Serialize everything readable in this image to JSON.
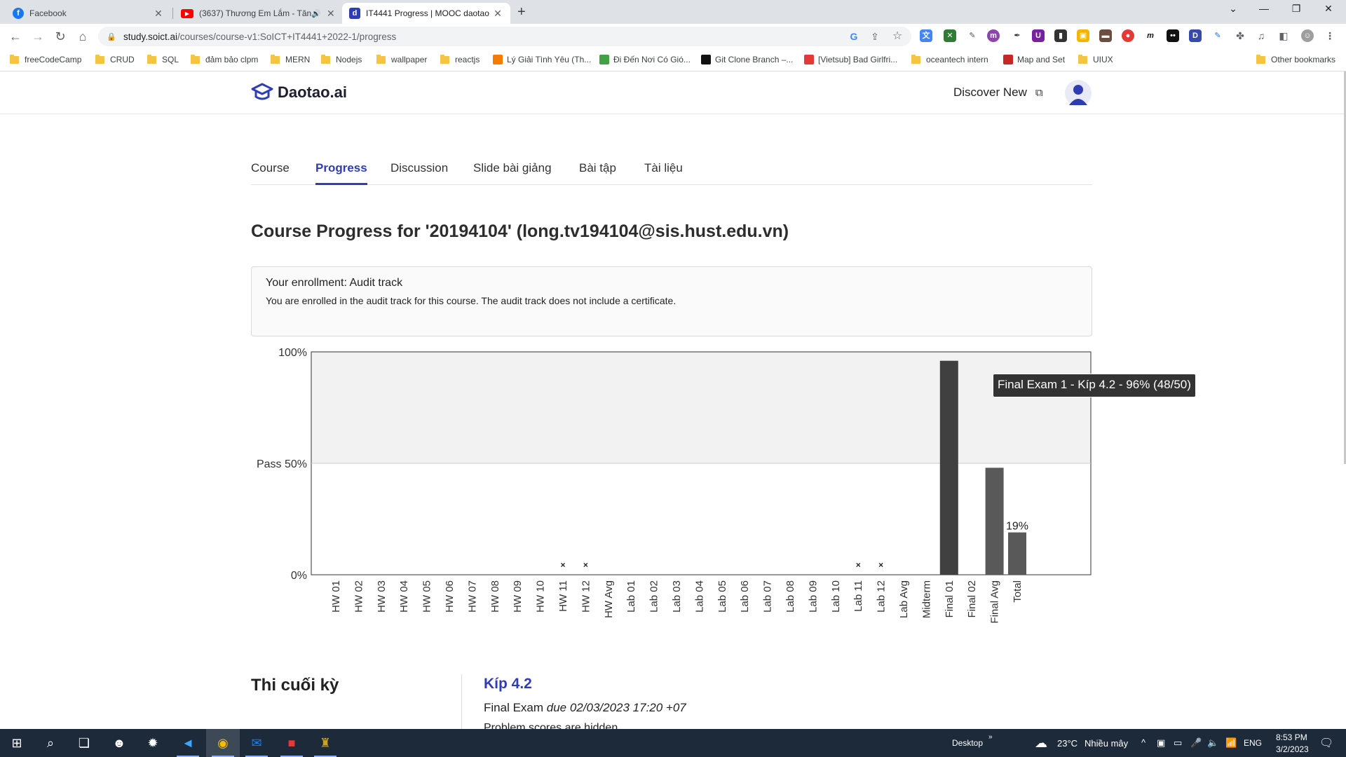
{
  "browser": {
    "tabs": [
      {
        "title": "Facebook",
        "icon": "facebook-icon",
        "color": "#1877f2"
      },
      {
        "title": "(3637) Thương Em Lắm - Tăn",
        "icon": "youtube-icon",
        "color": "#ff0000"
      },
      {
        "title": "IT4441 Progress | MOOC daotao",
        "icon": "daotao-icon",
        "color": "#2f3db5",
        "active": true
      }
    ],
    "url_host": "study.soict.ai",
    "url_path": "/courses/course-v1:SoICT+IT4441+2022-1/progress",
    "bookmarks": [
      {
        "label": "freeCodeCamp",
        "type": "folder"
      },
      {
        "label": "CRUD",
        "type": "folder"
      },
      {
        "label": "SQL",
        "type": "folder"
      },
      {
        "label": "đảm bảo clpm",
        "type": "folder"
      },
      {
        "label": "MERN",
        "type": "folder"
      },
      {
        "label": "Nodejs",
        "type": "folder"
      },
      {
        "label": "wallpaper",
        "type": "folder"
      },
      {
        "label": "reactjs",
        "type": "folder"
      },
      {
        "label": "Lý Giải Tình Yêu (Th...",
        "type": "site"
      },
      {
        "label": "Đi Đến Nơi Có Gió...",
        "type": "site"
      },
      {
        "label": "Git Clone Branch –...",
        "type": "site"
      },
      {
        "label": "[Vietsub] Bad Girlfri...",
        "type": "site"
      },
      {
        "label": "oceantech intern",
        "type": "folder"
      },
      {
        "label": "Map and Set",
        "type": "site"
      },
      {
        "label": "UIUX",
        "type": "folder"
      }
    ],
    "other_bookmarks": "Other bookmarks"
  },
  "site": {
    "logo_text": "Daotao.ai",
    "discover_label": "Discover New"
  },
  "nav_tabs": [
    {
      "label": "Course"
    },
    {
      "label": "Progress",
      "active": true
    },
    {
      "label": "Discussion"
    },
    {
      "label": "Slide bài giảng"
    },
    {
      "label": "Bài tập"
    },
    {
      "label": "Tài liệu"
    }
  ],
  "progress_title": "Course Progress for '20194104' (long.tv194104@sis.hust.edu.vn)",
  "enrollment": {
    "heading": "Your enrollment: Audit track",
    "body": "You are enrolled in the audit track for this course. The audit track does not include a certificate."
  },
  "chart_data": {
    "type": "bar",
    "categories": [
      "HW 01",
      "HW 02",
      "HW 03",
      "HW 04",
      "HW 05",
      "HW 06",
      "HW 07",
      "HW 08",
      "HW 09",
      "HW 10",
      "HW 11",
      "HW 12",
      "HW Avg",
      "Lab 01",
      "Lab 02",
      "Lab 03",
      "Lab 04",
      "Lab 05",
      "Lab 06",
      "Lab 07",
      "Lab 08",
      "Lab 09",
      "Lab 10",
      "Lab 11",
      "Lab 12",
      "Lab Avg",
      "Midterm",
      "Final 01",
      "Final 02",
      "Final Avg",
      "Total"
    ],
    "values": [
      0,
      0,
      0,
      0,
      0,
      0,
      0,
      0,
      0,
      0,
      0,
      0,
      0,
      0,
      0,
      0,
      0,
      0,
      0,
      0,
      0,
      0,
      0,
      0,
      0,
      0,
      0,
      96,
      0,
      48,
      19
    ],
    "dropped": [
      "HW 11",
      "HW 12",
      "Lab 11",
      "Lab 12"
    ],
    "dropped_marker": "×",
    "highlight": "Final 01",
    "y_ticks": [
      {
        "value": 0,
        "label": "0%"
      },
      {
        "value": 50,
        "label": "Pass 50%"
      },
      {
        "value": 100,
        "label": "100%"
      }
    ],
    "ylim": [
      0,
      100
    ],
    "total_label": "19%",
    "tooltip": "Final Exam 1 - Kíp 4.2 - 96% (48/50)",
    "colors": {
      "bar": "#595959",
      "bar_highlight": "#404040",
      "pass_band": "#f2f2f2"
    }
  },
  "section": {
    "title": "Thi cuối kỳ",
    "subsection": "Kíp 4.2",
    "exam_name": "Final Exam",
    "exam_due": "due 02/03/2023 17:20 +07",
    "note": "Problem scores are hidden"
  },
  "taskbar": {
    "desktop_label": "Desktop",
    "weather_temp": "23°C",
    "weather_desc": "Nhiều mây",
    "lang": "ENG",
    "time": "8:53 PM",
    "date": "3/2/2023"
  }
}
